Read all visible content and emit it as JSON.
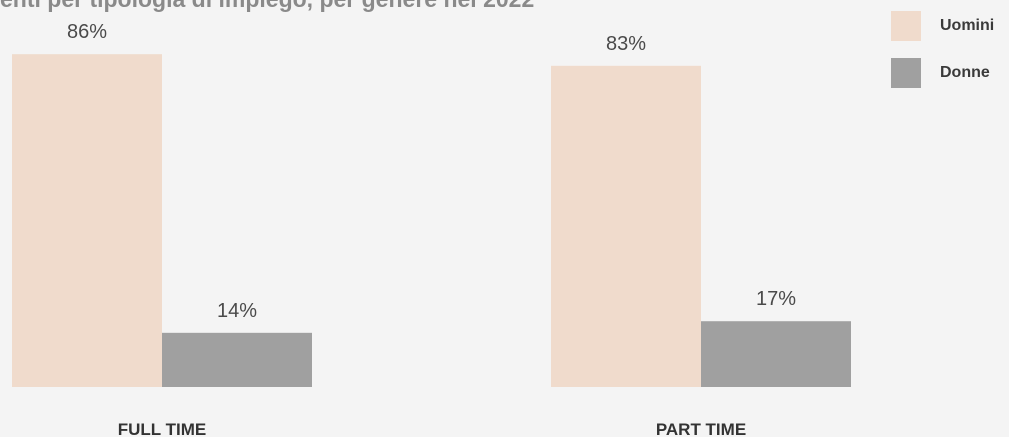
{
  "title": "enti per tipologia di impiego, per genere nel 2022",
  "chart_data": {
    "type": "bar",
    "categories": [
      "FULL TIME",
      "PART TIME"
    ],
    "series": [
      {
        "name": "Uomini",
        "values": [
          86,
          83
        ],
        "labels": [
          "86%",
          "83%"
        ],
        "color": "#f0dbcc"
      },
      {
        "name": "Donne",
        "values": [
          14,
          17
        ],
        "labels": [
          "14%",
          "17%"
        ],
        "color": "#a0a0a0"
      }
    ],
    "ylim": [
      0,
      100
    ],
    "grid": false,
    "legend_position": "top-right"
  }
}
